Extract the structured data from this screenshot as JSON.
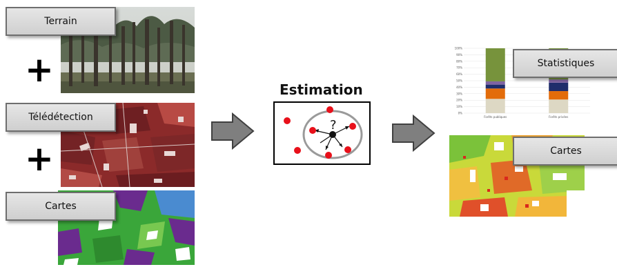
{
  "inputs": {
    "terrain_label": "Terrain",
    "teledetection_label": "Télédétection",
    "cartes_label": "Cartes",
    "plus_sign": "+"
  },
  "process": {
    "title": "Estimation",
    "question_mark": "?"
  },
  "outputs": {
    "statistiques_label": "Statistiques",
    "cartes_label": "Cartes"
  },
  "chart_data": {
    "type": "bar",
    "stacked": true,
    "categories": [
      "Forêts publiques",
      "Forêts privées"
    ],
    "y_ticks": [
      "0%",
      "10%",
      "20%",
      "30%",
      "40%",
      "50%",
      "60%",
      "70%",
      "80%",
      "90%",
      "100%"
    ],
    "ylim": [
      0,
      100
    ],
    "series": [
      {
        "color": "#ddd8c4",
        "values": [
          22,
          21
        ]
      },
      {
        "color": "#e36c0a",
        "values": [
          16,
          13
        ]
      },
      {
        "color": "#1f2d6b",
        "values": [
          6,
          13
        ]
      },
      {
        "color": "#8064a2",
        "values": [
          5,
          5
        ]
      },
      {
        "color": "#77933c",
        "values": [
          51,
          48
        ]
      }
    ]
  },
  "colors": {
    "arrow": "#7f7f7f",
    "label_border": "#6e6e6e",
    "red_dot": "#e8101a"
  }
}
